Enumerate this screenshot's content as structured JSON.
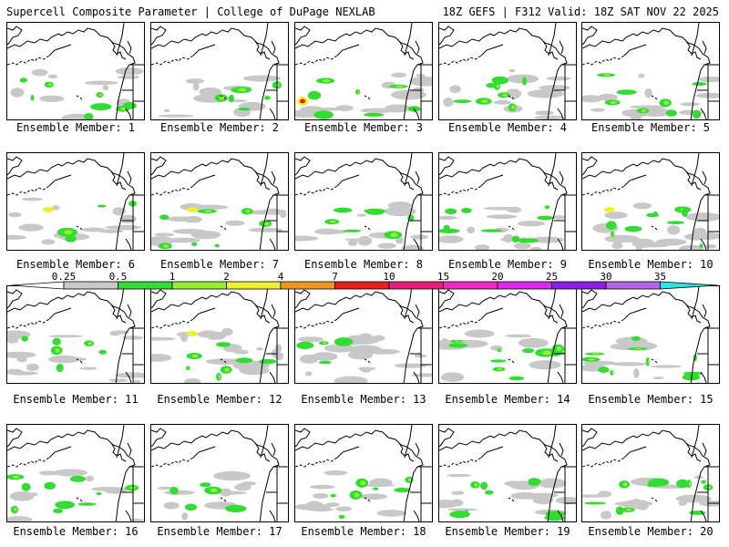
{
  "header": {
    "left": "Supercell Composite Parameter | College of DuPage NEXLAB",
    "right": "18Z GEFS | F312 Valid: 18Z SAT NOV 22 2025"
  },
  "member_label_prefix": "Ensemble Member: ",
  "members": [
    1,
    2,
    3,
    4,
    5,
    6,
    7,
    8,
    9,
    10,
    11,
    12,
    13,
    14,
    15,
    16,
    17,
    18,
    19,
    20
  ],
  "colorbar": {
    "labels": [
      "0.25",
      "0.5",
      "1",
      "2",
      "4",
      "7",
      "10",
      "15",
      "20",
      "25",
      "30",
      "35"
    ],
    "colors": [
      "#ffffff",
      "#c8c8c8",
      "#32dc32",
      "#96f032",
      "#f0f032",
      "#f0961e",
      "#e61e1e",
      "#e61e78",
      "#f028c8",
      "#dc28f0",
      "#8c1ee6",
      "#b464e6",
      "#28e6e6"
    ]
  },
  "map_colors": {
    "land_outline": "#000000",
    "weak": "#c8c8c8",
    "moderate": "#32dc32",
    "strong": "#96f032",
    "high": "#f0f032",
    "extreme": "#e61e1e"
  }
}
